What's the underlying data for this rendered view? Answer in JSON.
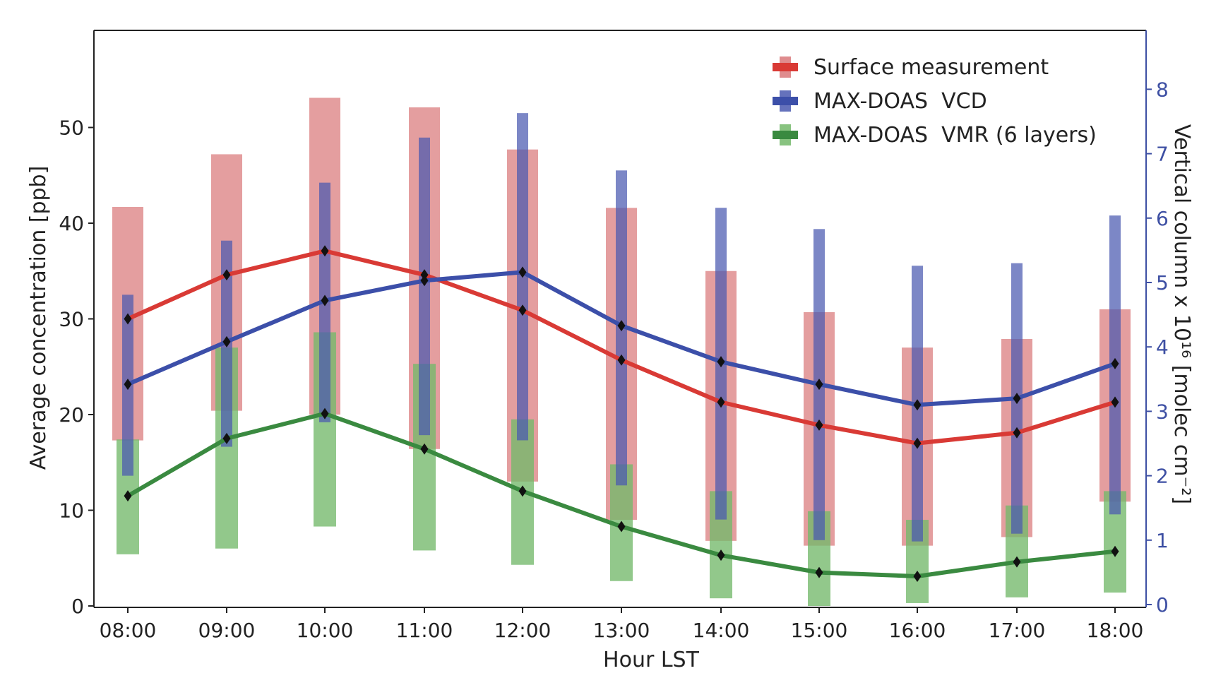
{
  "chart_data": {
    "type": "line",
    "title": "",
    "xlabel": "Hour LST",
    "ylabel": "Average concentration [ppb]",
    "y2label": "Vertical column x 10¹⁶ [molec cm⁻²]",
    "categories": [
      "08:00",
      "09:00",
      "10:00",
      "11:00",
      "12:00",
      "13:00",
      "14:00",
      "15:00",
      "16:00",
      "17:00",
      "18:00"
    ],
    "x_hours": [
      8,
      9,
      10,
      11,
      12,
      13,
      14,
      15,
      16,
      17,
      18
    ],
    "ylim": [
      0,
      60
    ],
    "y2lim": [
      0,
      9
    ],
    "yticks": [
      0,
      10,
      20,
      30,
      40,
      50
    ],
    "y2ticks": [
      0,
      1,
      2,
      3,
      4,
      5,
      6,
      7,
      8
    ],
    "grid": false,
    "legend_position": "top-right",
    "series": [
      {
        "name": "Surface measurement",
        "axis": "left",
        "color": "#d93a35",
        "bar_color": "#d9787a",
        "values": [
          30.0,
          34.6,
          37.1,
          34.6,
          30.9,
          25.7,
          21.3,
          18.9,
          17.0,
          18.1,
          21.3
        ],
        "range_low": [
          17.3,
          20.4,
          20.0,
          16.4,
          13.0,
          9.0,
          6.8,
          6.3,
          6.3,
          7.2,
          10.9
        ],
        "range_high": [
          41.7,
          47.2,
          53.1,
          52.1,
          47.7,
          41.6,
          35.0,
          30.7,
          27.0,
          27.9,
          31.0
        ]
      },
      {
        "name": "MAX-DOAS  VCD",
        "axis": "right",
        "color": "#3c4fa9",
        "bar_color": "#4a59b0",
        "values": [
          3.42,
          4.08,
          4.72,
          5.03,
          5.16,
          4.33,
          3.77,
          3.42,
          3.1,
          3.2,
          3.74
        ],
        "range_low": [
          2.0,
          2.45,
          2.83,
          2.63,
          2.55,
          1.85,
          1.32,
          1.0,
          0.98,
          1.1,
          1.4
        ],
        "range_high": [
          4.81,
          5.65,
          6.55,
          7.25,
          7.63,
          6.74,
          6.16,
          5.83,
          5.26,
          5.3,
          6.04
        ]
      },
      {
        "name": "MAX-DOAS  VMR (6 layers)",
        "axis": "left",
        "color": "#3a8a40",
        "bar_color": "#73b86a",
        "values": [
          11.5,
          17.5,
          20.1,
          16.4,
          12.0,
          8.3,
          5.3,
          3.5,
          3.1,
          4.6,
          5.7
        ],
        "range_low": [
          5.4,
          6.0,
          8.3,
          5.8,
          4.3,
          2.6,
          0.8,
          0.0,
          0.3,
          0.9,
          1.4
        ],
        "range_high": [
          17.4,
          27.0,
          28.6,
          25.3,
          19.5,
          14.8,
          12.0,
          9.9,
          9.0,
          10.5,
          12.0
        ]
      }
    ]
  }
}
